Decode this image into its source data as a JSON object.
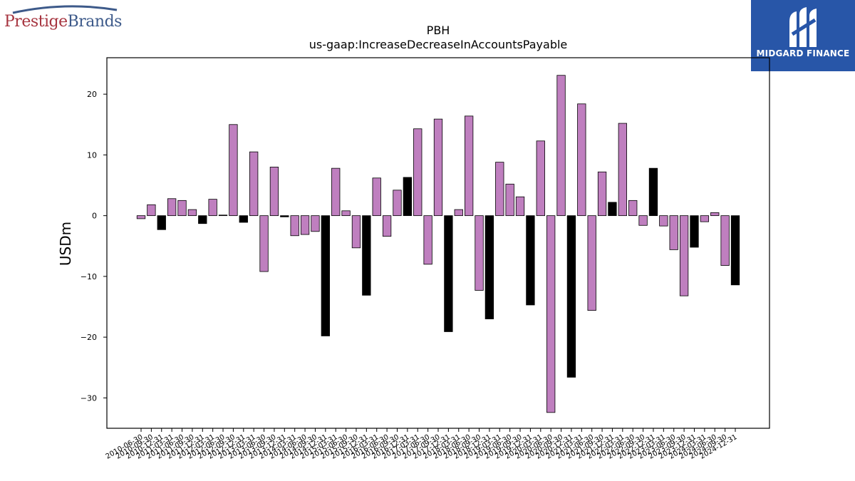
{
  "logos": {
    "left": {
      "text_part1": "Prestige",
      "text_part2": "Brands",
      "color1": "#a6343f",
      "color2": "#3d5a8a"
    },
    "right": {
      "text": "MIDGARD FINANCE",
      "background": "#2856a8"
    }
  },
  "chart_data": {
    "type": "bar",
    "title": "PBH",
    "subtitle": "us-gaap:IncreaseDecreaseInAccountsPayable",
    "xlabel": "",
    "ylabel": "USDm",
    "ylim": [
      -35,
      26
    ],
    "yticks": [
      -30,
      -20,
      -10,
      0,
      10,
      20
    ],
    "grid": false,
    "colors": {
      "quarter": "#bf7fbf",
      "annual": "#000000",
      "edge": "#000000"
    },
    "categories": [
      "2010-06-30",
      "2010-09-30",
      "2010-12-31",
      "2011-03-31",
      "2011-06-30",
      "2011-09-30",
      "2011-12-31",
      "2012-03-31",
      "2012-06-30",
      "2012-09-30",
      "2012-12-31",
      "2013-03-31",
      "2013-06-30",
      "2013-09-30",
      "2013-12-31",
      "2014-03-31",
      "2014-06-30",
      "2014-09-30",
      "2014-12-31",
      "2015-03-31",
      "2015-06-30",
      "2015-09-30",
      "2015-12-31",
      "2016-03-31",
      "2016-06-30",
      "2016-09-30",
      "2016-12-31",
      "2017-03-31",
      "2017-06-30",
      "2017-09-30",
      "2017-12-31",
      "2018-03-31",
      "2018-06-30",
      "2018-09-30",
      "2018-12-31",
      "2019-03-31",
      "2019-06-30",
      "2019-09-30",
      "2019-12-31",
      "2020-03-31",
      "2020-06-30",
      "2020-09-30",
      "2020-12-31",
      "2021-03-31",
      "2021-06-30",
      "2021-09-30",
      "2021-12-31",
      "2022-03-31",
      "2022-06-30",
      "2022-09-30",
      "2022-12-31",
      "2023-03-31",
      "2023-06-30",
      "2023-09-30",
      "2023-12-31",
      "2024-03-31",
      "2024-06-30",
      "2024-09-30",
      "2024-12-31"
    ],
    "values": [
      -0.5,
      1.8,
      -2.3,
      2.8,
      2.5,
      1.0,
      -1.3,
      2.7,
      0.1,
      15.0,
      -1.1,
      10.5,
      -9.2,
      8.0,
      -0.2,
      -3.3,
      -3.1,
      -2.6,
      -19.8,
      7.8,
      0.8,
      -5.3,
      -13.1,
      6.2,
      -3.4,
      4.2,
      6.3,
      14.3,
      -8.0,
      15.9,
      -19.1,
      1.0,
      16.4,
      -12.3,
      -17.0,
      8.8,
      5.2,
      3.1,
      -14.7,
      12.3,
      -32.4,
      23.1,
      -26.6,
      18.4,
      -15.6,
      7.2,
      2.2,
      15.2,
      2.5,
      -1.6,
      7.8,
      -1.7,
      -5.6,
      -13.2,
      -5.2,
      -1.0,
      0.5,
      -8.2,
      -11.4
    ],
    "annual": [
      false,
      false,
      true,
      false,
      false,
      false,
      true,
      false,
      false,
      false,
      true,
      false,
      false,
      false,
      true,
      false,
      false,
      false,
      true,
      false,
      false,
      false,
      true,
      false,
      false,
      false,
      true,
      false,
      false,
      false,
      true,
      false,
      false,
      false,
      true,
      false,
      false,
      false,
      true,
      false,
      false,
      false,
      true,
      false,
      false,
      false,
      true,
      false,
      false,
      false,
      true,
      false,
      false,
      false,
      true,
      false,
      false,
      false,
      true
    ]
  }
}
